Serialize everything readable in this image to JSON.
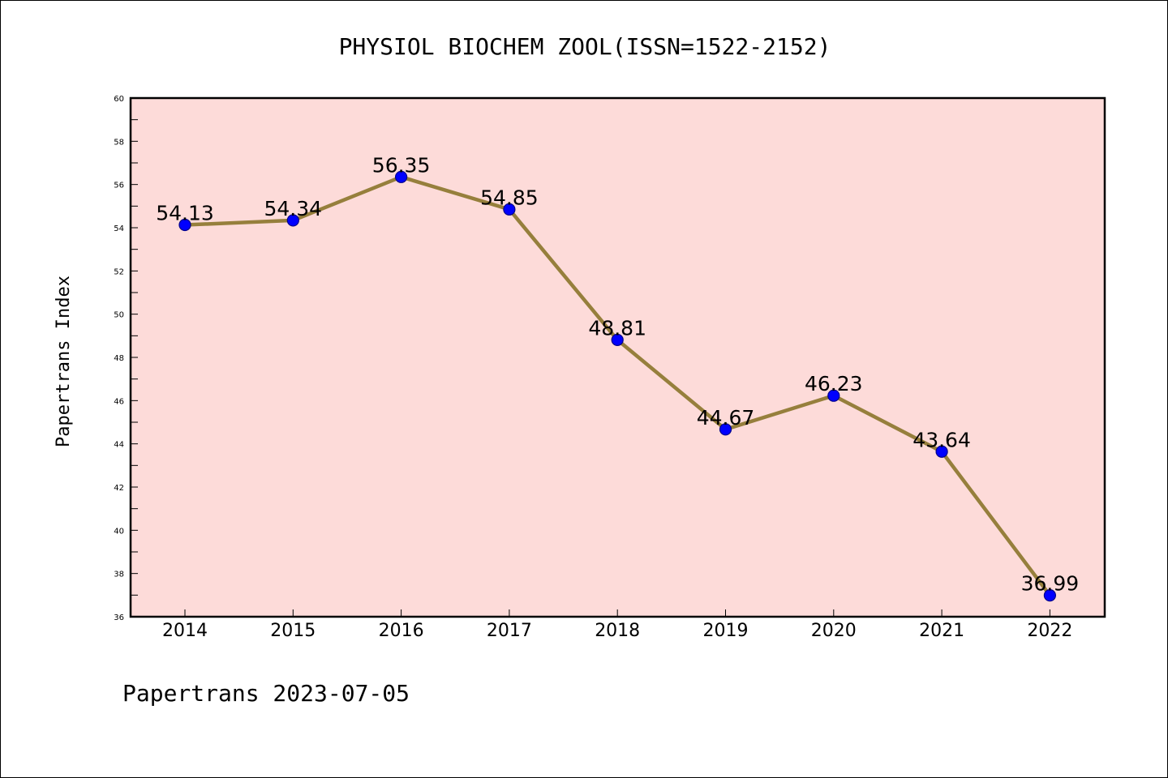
{
  "chart_data": {
    "type": "line",
    "title": "PHYSIOL BIOCHEM ZOOL(ISSN=1522-2152)",
    "ylabel": "Papertrans Index",
    "xlabel": "",
    "categories": [
      "2014",
      "2015",
      "2016",
      "2017",
      "2018",
      "2019",
      "2020",
      "2021",
      "2022"
    ],
    "series": [
      {
        "values": [
          54.13,
          54.34,
          56.35,
          54.85,
          48.81,
          44.67,
          46.23,
          43.64,
          36.99
        ],
        "labels": [
          "54.13",
          "54.34",
          "56.35",
          "54.85",
          "48.81",
          "44.67",
          "46.23",
          "43.64",
          "36.99"
        ]
      }
    ],
    "ylim": [
      36,
      60
    ],
    "yticks": [
      "36",
      "38",
      "40",
      "42",
      "44",
      "46",
      "48",
      "50",
      "52",
      "54",
      "56",
      "58",
      "60"
    ],
    "grid": false,
    "legend": "none",
    "colors": {
      "plot_background": "#fddbd9",
      "line": "#967f3c",
      "marker": "#0000ff",
      "marker_edge": "#00008b"
    }
  },
  "footer": "Papertrans 2023-07-05"
}
